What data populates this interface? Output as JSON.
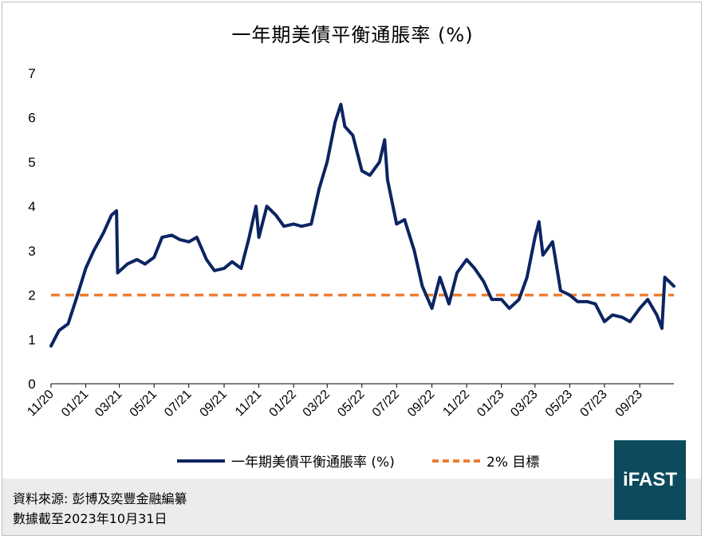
{
  "chart_data": {
    "type": "line",
    "title": "一年期美債平衡通脹率 (%)",
    "ylim": [
      0,
      7
    ],
    "yticks": [
      "0",
      "1",
      "2",
      "3",
      "4",
      "5",
      "6",
      "7"
    ],
    "xticks": [
      "11/20",
      "01/21",
      "03/21",
      "05/21",
      "07/21",
      "09/21",
      "11/21",
      "01/22",
      "03/22",
      "05/22",
      "07/22",
      "09/22",
      "11/22",
      "01/23",
      "03/23",
      "05/23",
      "07/23",
      "09/23"
    ],
    "series": [
      {
        "name": "一年期美債平衡通脹率 (%)",
        "color": "#0c2461",
        "x": [
          "2020-11-01",
          "2020-11-15",
          "2020-12-01",
          "2020-12-15",
          "2021-01-01",
          "2021-01-15",
          "2021-02-01",
          "2021-02-15",
          "2021-02-24",
          "2021-02-26",
          "2021-03-15",
          "2021-04-01",
          "2021-04-15",
          "2021-05-01",
          "2021-05-15",
          "2021-06-01",
          "2021-06-15",
          "2021-07-01",
          "2021-07-15",
          "2021-08-01",
          "2021-08-15",
          "2021-09-01",
          "2021-09-15",
          "2021-10-01",
          "2021-10-15",
          "2021-10-27",
          "2021-11-01",
          "2021-11-15",
          "2021-12-01",
          "2021-12-15",
          "2022-01-01",
          "2022-01-15",
          "2022-02-01",
          "2022-02-15",
          "2022-03-01",
          "2022-03-15",
          "2022-03-25",
          "2022-04-01",
          "2022-04-15",
          "2022-05-01",
          "2022-05-15",
          "2022-06-01",
          "2022-06-10",
          "2022-06-15",
          "2022-07-01",
          "2022-07-15",
          "2022-08-01",
          "2022-08-15",
          "2022-09-01",
          "2022-09-15",
          "2022-10-01",
          "2022-10-15",
          "2022-11-01",
          "2022-11-15",
          "2022-12-01",
          "2022-12-15",
          "2023-01-01",
          "2023-01-15",
          "2023-02-01",
          "2023-02-15",
          "2023-03-01",
          "2023-03-08",
          "2023-03-15",
          "2023-04-01",
          "2023-04-15",
          "2023-05-01",
          "2023-05-15",
          "2023-06-01",
          "2023-06-15",
          "2023-07-01",
          "2023-07-15",
          "2023-08-01",
          "2023-08-15",
          "2023-09-01",
          "2023-09-15",
          "2023-10-01",
          "2023-10-10",
          "2023-10-15",
          "2023-10-31"
        ],
        "values": [
          0.85,
          1.2,
          1.35,
          1.9,
          2.6,
          3.0,
          3.4,
          3.8,
          3.9,
          2.5,
          2.7,
          2.8,
          2.7,
          2.85,
          3.3,
          3.35,
          3.25,
          3.2,
          3.3,
          2.8,
          2.55,
          2.6,
          2.75,
          2.6,
          3.3,
          4.0,
          3.3,
          4.0,
          3.8,
          3.55,
          3.6,
          3.55,
          3.6,
          4.4,
          5.0,
          5.9,
          6.3,
          5.8,
          5.6,
          4.8,
          4.7,
          5.0,
          5.5,
          4.6,
          3.6,
          3.7,
          3.0,
          2.2,
          1.7,
          2.4,
          1.8,
          2.5,
          2.8,
          2.6,
          2.3,
          1.9,
          1.9,
          1.7,
          1.9,
          2.4,
          3.3,
          3.65,
          2.9,
          3.2,
          2.1,
          2.0,
          1.85,
          1.85,
          1.8,
          1.4,
          1.55,
          1.5,
          1.4,
          1.7,
          1.9,
          1.55,
          1.25,
          2.4,
          2.2
        ]
      },
      {
        "name": "2% 目標",
        "color": "#ed7d31",
        "dashed": true,
        "value": 2
      }
    ]
  },
  "legend": {
    "series_label": "一年期美債平衡通脹率 (%)",
    "target_label": "2% 目標"
  },
  "footer": {
    "source": "資料來源: 彭博及奕豐金融編纂",
    "date": "數據截至2023年10月31日"
  },
  "logo": {
    "text": "iFAST",
    "color": "#0c4a5c"
  }
}
